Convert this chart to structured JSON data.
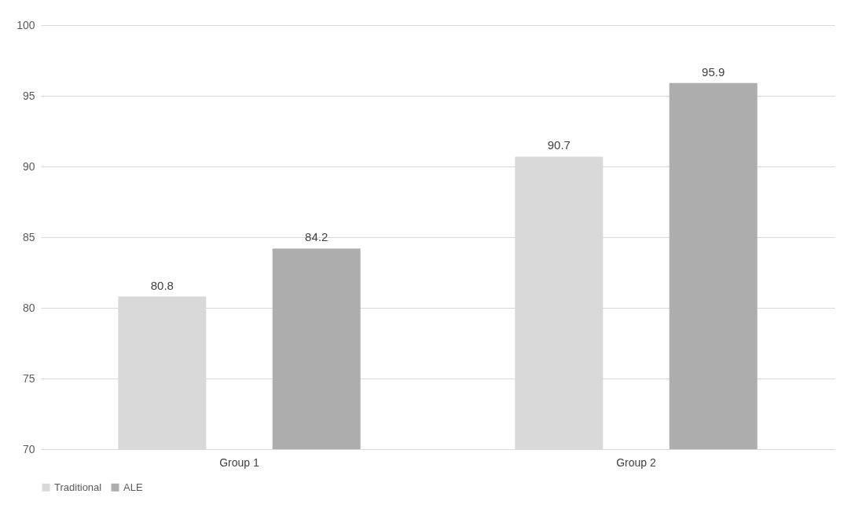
{
  "chart_data": {
    "type": "bar",
    "categories": [
      "Group 1",
      "Group 2"
    ],
    "series": [
      {
        "name": "Traditional",
        "color": "#d9d9d9",
        "values": [
          80.8,
          90.7
        ]
      },
      {
        "name": "ALE",
        "color": "#adadad",
        "values": [
          84.2,
          95.9
        ]
      }
    ],
    "ylim": [
      70,
      100
    ],
    "yticks": [
      70,
      75,
      80,
      85,
      90,
      95,
      100
    ],
    "grid": "y",
    "legend": "bottom",
    "data_labels": true
  }
}
